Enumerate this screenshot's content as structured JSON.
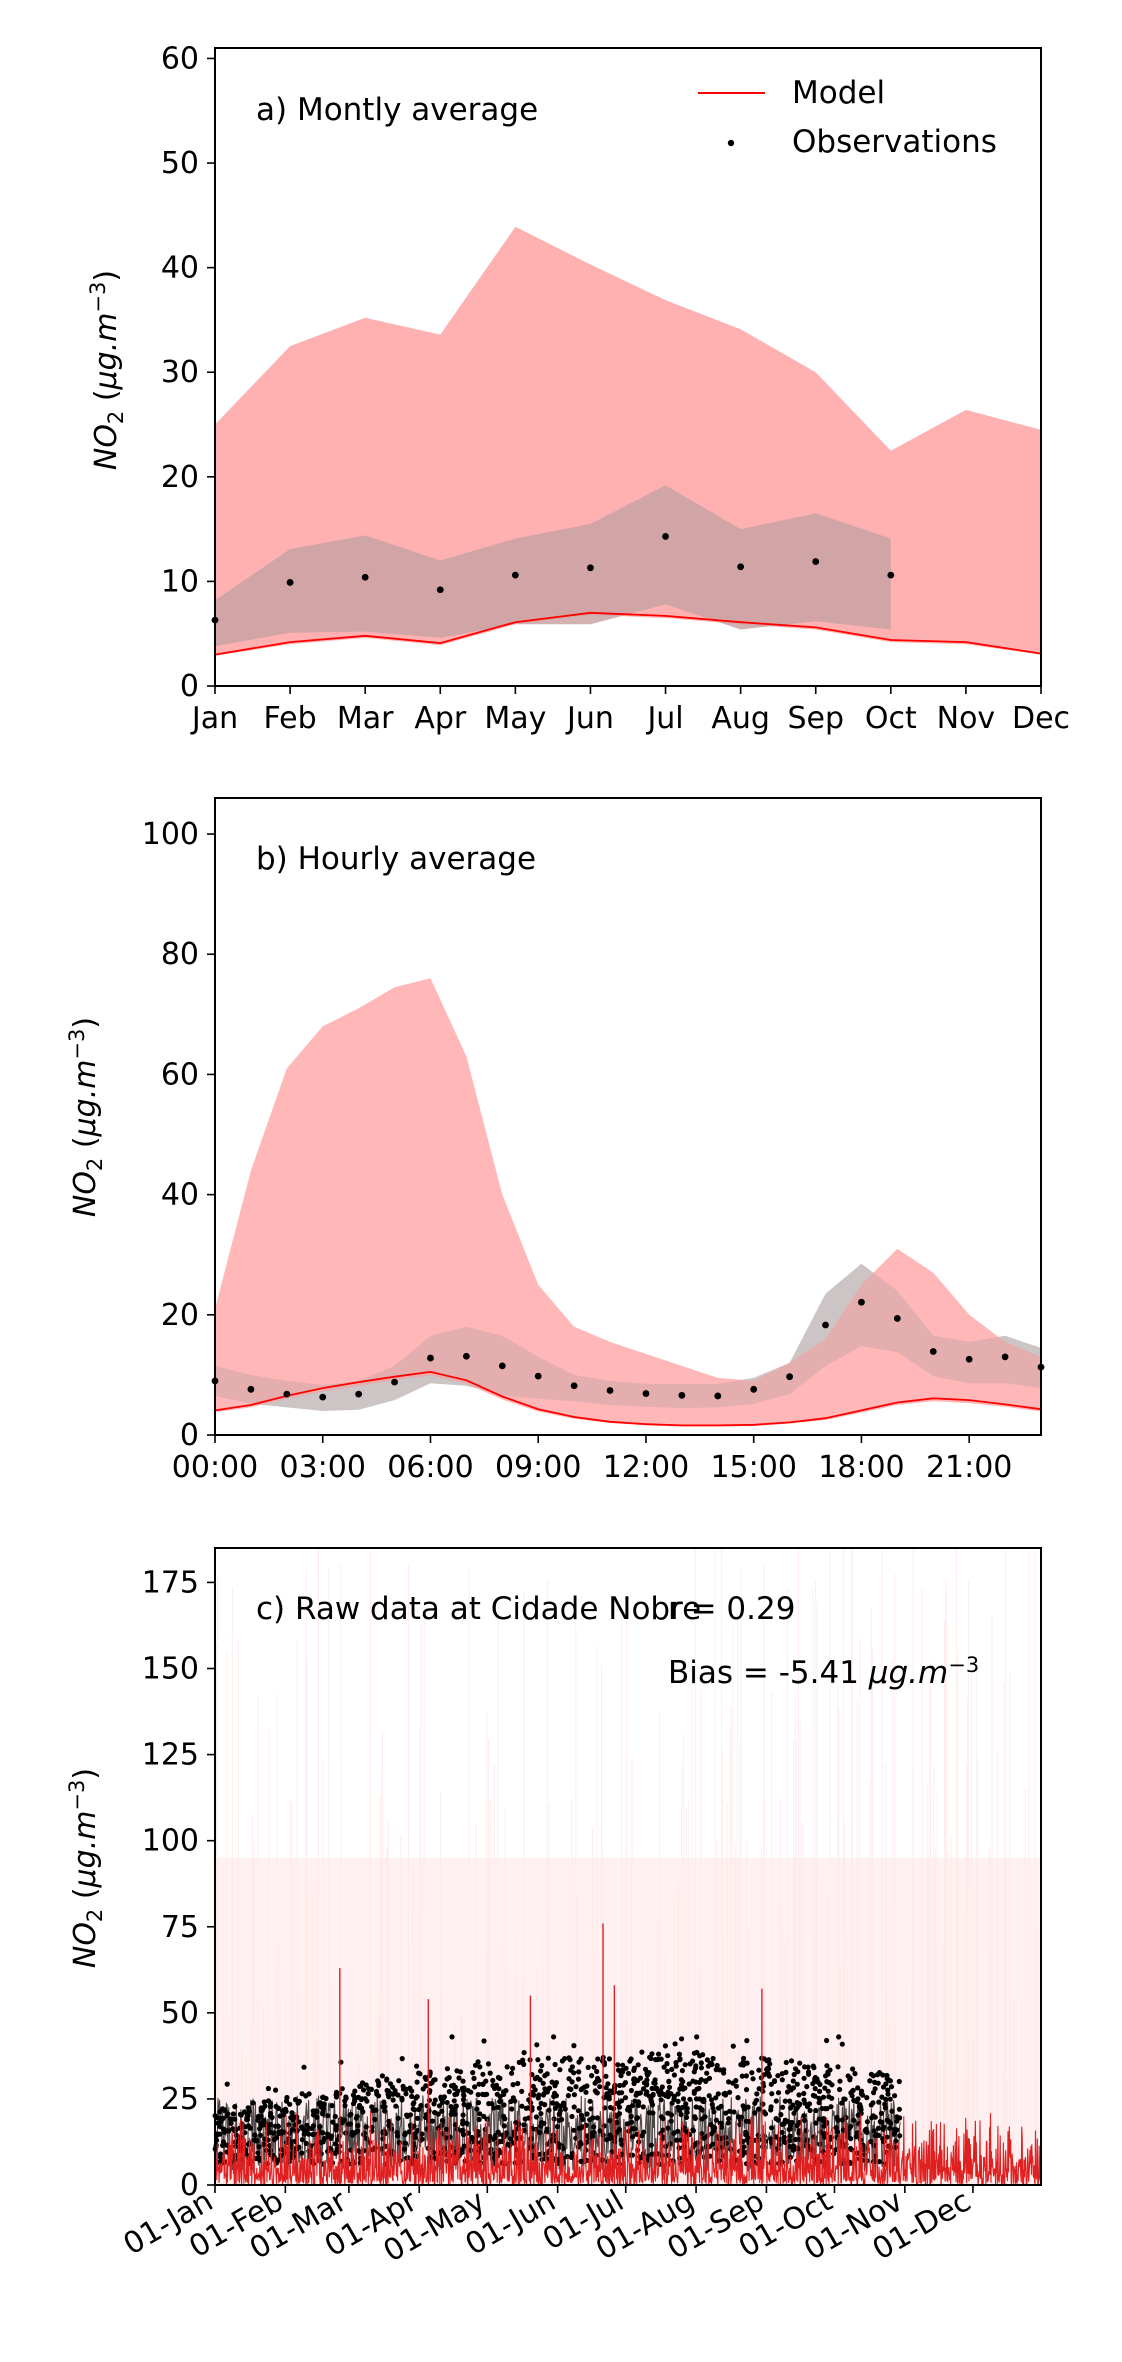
{
  "chart_data": [
    {
      "type": "area",
      "title": "a) Montly average",
      "xlabel": "",
      "ylabel": "NO₂ (μg.m⁻³)",
      "ylim": [
        0,
        61
      ],
      "yticks": [
        0,
        10,
        20,
        30,
        40,
        50,
        60
      ],
      "categories": [
        "Jan",
        "Feb",
        "Mar",
        "Apr",
        "May",
        "Jun",
        "Jul",
        "Aug",
        "Sep",
        "Oct",
        "Nov",
        "Dec"
      ],
      "legend": {
        "placement": "top-right",
        "entries": [
          "Model",
          "Observations"
        ]
      },
      "colors": {
        "model": "#ff0000",
        "model_band": "#ffb1b2",
        "obs_band": "#c9a3a3",
        "obs": "#000000"
      },
      "model_upper": [
        25,
        32.5,
        35.2,
        33.6,
        43.9,
        40.3,
        36.9,
        34.1,
        30.0,
        22.5,
        26.4,
        24.5
      ],
      "model_mean": [
        3.0,
        4.2,
        4.8,
        4.1,
        6.1,
        7.0,
        6.7,
        6.1,
        5.6,
        4.4,
        4.2,
        3.1
      ],
      "model_lower": [
        2.9,
        4.0,
        4.6,
        3.9,
        5.9,
        6.8,
        6.5,
        5.9,
        5.4,
        4.2,
        4.0,
        3.0
      ],
      "obs_mean": [
        6.3,
        9.9,
        10.4,
        9.2,
        10.6,
        11.3,
        14.3,
        11.4,
        11.9,
        10.6
      ],
      "obs_upper": [
        8.2,
        13.1,
        14.4,
        12.0,
        14.1,
        15.5,
        19.2,
        15.0,
        16.5,
        14.1
      ],
      "obs_lower": [
        3.8,
        5.1,
        5.2,
        4.6,
        5.9,
        5.9,
        7.8,
        5.4,
        6.2,
        5.4
      ]
    },
    {
      "type": "area",
      "title": "b) Hourly average",
      "xlabel": "",
      "ylabel": "NO₂ (μg.m⁻³)",
      "ylim": [
        0,
        106
      ],
      "yticks": [
        0,
        20,
        40,
        60,
        80,
        100
      ],
      "xticks": [
        "00:00",
        "03:00",
        "06:00",
        "09:00",
        "12:00",
        "15:00",
        "18:00",
        "21:00"
      ],
      "x": [
        0,
        1,
        2,
        3,
        4,
        5,
        6,
        7,
        8,
        9,
        10,
        11,
        12,
        13,
        14,
        15,
        16,
        17,
        18,
        19,
        20,
        21,
        22,
        23
      ],
      "colors": {
        "model": "#ff0000",
        "model_band": "#ffb1b2",
        "obs_band": "#d9d9d9",
        "obs": "#000000"
      },
      "model_upper": [
        21,
        44,
        61,
        68,
        71,
        74.5,
        76,
        63,
        40,
        25,
        18,
        15.5,
        13.5,
        11.5,
        9.5,
        9,
        12,
        16,
        25,
        31,
        27,
        20,
        15.5,
        13
      ],
      "model_mean": [
        4.1,
        5.0,
        6.5,
        7.8,
        8.8,
        9.7,
        10.5,
        9.1,
        6.4,
        4.3,
        3.0,
        2.2,
        1.8,
        1.6,
        1.6,
        1.7,
        2.1,
        2.8,
        4.1,
        5.4,
        6.1,
        5.8,
        5.1,
        4.3
      ],
      "model_lower": [
        3.8,
        4.6,
        6.0,
        7.2,
        8.2,
        9.1,
        9.9,
        8.5,
        5.9,
        3.9,
        2.7,
        2.0,
        1.6,
        1.4,
        1.4,
        1.5,
        1.9,
        2.5,
        3.7,
        5.0,
        5.6,
        5.3,
        4.7,
        3.9
      ],
      "obs_mean": [
        9.0,
        7.6,
        6.8,
        6.3,
        6.8,
        8.8,
        12.8,
        13.1,
        11.5,
        9.8,
        8.2,
        7.4,
        6.9,
        6.6,
        6.5,
        7.6,
        9.7,
        18.3,
        22.1,
        19.4,
        13.9,
        12.6,
        13.0,
        11.3
      ],
      "obs_upper": [
        11.5,
        10.0,
        9.0,
        8.3,
        9.0,
        11.5,
        16.5,
        18.0,
        16.5,
        13.0,
        10.0,
        9.0,
        8.5,
        8.5,
        8.5,
        9.5,
        12.0,
        23.5,
        28.5,
        24.0,
        16.5,
        15.5,
        16.5,
        14.5
      ],
      "obs_lower": [
        6.5,
        5.2,
        4.6,
        4.0,
        4.2,
        5.8,
        8.6,
        8.2,
        6.6,
        6.0,
        5.6,
        5.0,
        4.7,
        4.5,
        4.6,
        5.2,
        6.8,
        11.5,
        14.8,
        13.8,
        9.8,
        8.6,
        8.6,
        7.8
      ]
    },
    {
      "type": "line",
      "title": "c) Raw data at Cidade Nobre",
      "ylabel": "NO₂ (μg.m⁻³)",
      "ylim": [
        0,
        185
      ],
      "yticks": [
        0,
        25,
        50,
        75,
        100,
        125,
        150,
        175
      ],
      "xticks": [
        "01-Jan",
        "01-Feb",
        "01-Mar",
        "01-Apr",
        "01-May",
        "01-Jun",
        "01-Jul",
        "01-Aug",
        "01-Sep",
        "01-Oct",
        "01-Nov",
        "01-Dec"
      ],
      "xlim_days": [
        0,
        364
      ],
      "obs_end_day": 302,
      "stats": {
        "r": "r = 0.29",
        "bias_prefix": "Bias = -5.41 ",
        "bias_unit": "μg.m⁻³"
      },
      "colors": {
        "model": "#e02020",
        "model_spread": "#ffe6e6",
        "obs": "#000000"
      },
      "obs_typical_range": [
        3,
        42
      ],
      "model_typical_range": [
        0,
        20
      ],
      "model_spikes": [
        {
          "date": "2023-02-25",
          "value": 63
        },
        {
          "date": "2023-04-05",
          "value": 54
        },
        {
          "date": "2023-05-20",
          "value": 55
        },
        {
          "date": "2023-06-21",
          "value": 76
        },
        {
          "date": "2023-06-26",
          "value": 58
        },
        {
          "date": "2023-08-30",
          "value": 57
        }
      ]
    }
  ]
}
